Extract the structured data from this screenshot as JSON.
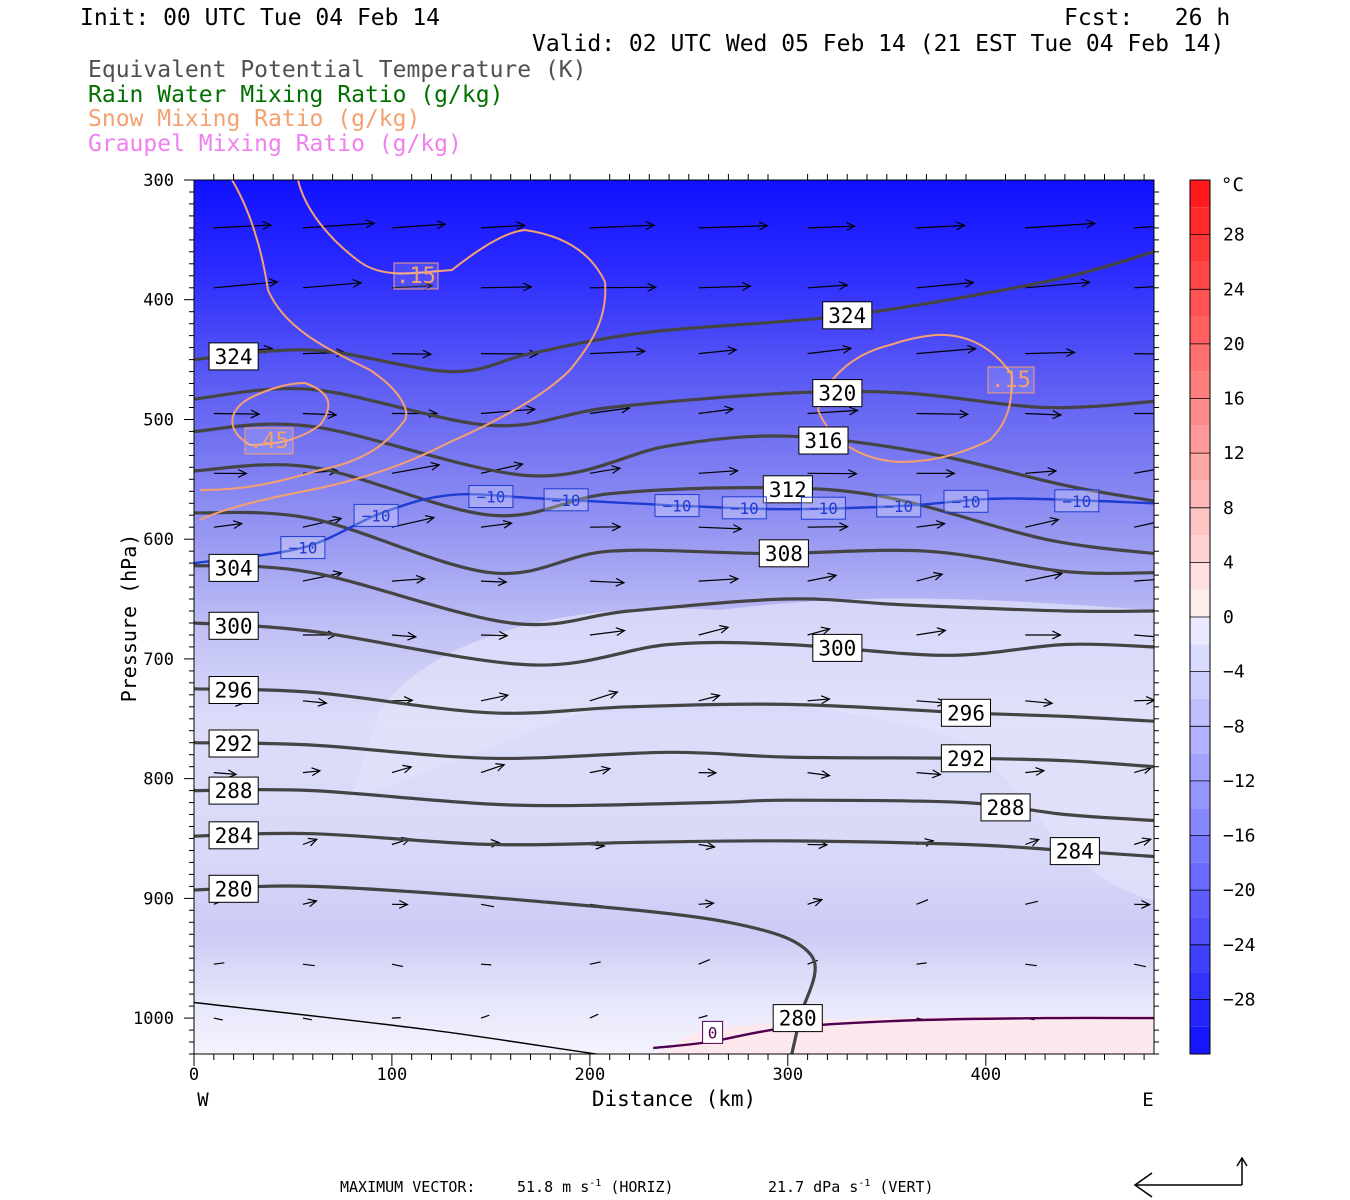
{
  "header": {
    "init": "Init: 00 UTC Tue 04 Feb 14",
    "fcst": "Fcst:   26 h",
    "valid": "Valid: 02 UTC Wed 05 Feb 14 (21 EST Tue 04 Feb 14)"
  },
  "legend": {
    "items": [
      {
        "label": "Equivalent Potential Temperature (K)",
        "color": "#505050"
      },
      {
        "label": "Rain Water Mixing Ratio (g/kg)",
        "color": "#007000"
      },
      {
        "label": "Snow Mixing Ratio (g/kg)",
        "color": "#f4a070"
      },
      {
        "label": "Graupel Mixing Ratio (g/kg)",
        "color": "#f080f0"
      }
    ]
  },
  "footer": {
    "label": "MAXIMUM VECTOR:",
    "horiz_value": "51.8 m s",
    "horiz_sup": "-1",
    "horiz_unit": " (HORIZ)",
    "vert_value": "21.7 dPa s",
    "vert_sup": "-1",
    "vert_unit": " (VERT)"
  },
  "colorbar": {
    "unit": "°C",
    "tick_labels": [
      "28",
      "24",
      "20",
      "16",
      "12",
      "8",
      "4",
      "0",
      "−4",
      "−8",
      "−12",
      "−16",
      "−20",
      "−24",
      "−28"
    ],
    "tick_values": [
      28,
      24,
      20,
      16,
      12,
      8,
      4,
      0,
      -4,
      -8,
      -12,
      -16,
      -20,
      -24,
      -28
    ],
    "range": [
      -32,
      32
    ]
  },
  "chart_data": {
    "type": "cross-section",
    "xlabel": "Distance (km)",
    "ylabel": "Pressure (hPa)",
    "xlim": [
      0,
      485
    ],
    "ylim": [
      1030,
      300
    ],
    "x_ticks": [
      "0",
      "100",
      "200",
      "300",
      "400"
    ],
    "x_tick_values": [
      0,
      100,
      200,
      300,
      400
    ],
    "y_ticks": [
      "300",
      "400",
      "500",
      "600",
      "700",
      "800",
      "900",
      "1000"
    ],
    "y_tick_values": [
      300,
      400,
      500,
      600,
      700,
      800,
      900,
      1000
    ],
    "west_label": "W",
    "east_label": "E",
    "theta_e_contours": [
      {
        "label": "324",
        "points": [
          [
            0,
            450
          ],
          [
            60,
            442
          ],
          [
            130,
            460
          ],
          [
            170,
            445
          ],
          [
            230,
            427
          ],
          [
            330,
            413
          ],
          [
            430,
            385
          ],
          [
            485,
            360
          ]
        ]
      },
      {
        "label": "320",
        "points": [
          [
            0,
            483
          ],
          [
            60,
            475
          ],
          [
            150,
            505
          ],
          [
            210,
            490
          ],
          [
            300,
            478
          ],
          [
            360,
            478
          ],
          [
            430,
            490
          ],
          [
            485,
            485
          ]
        ]
      },
      {
        "label": "316",
        "points": [
          [
            0,
            510
          ],
          [
            60,
            506
          ],
          [
            170,
            547
          ],
          [
            240,
            522
          ],
          [
            300,
            514
          ],
          [
            370,
            528
          ],
          [
            440,
            555
          ],
          [
            485,
            568
          ]
        ]
      },
      {
        "label": "312",
        "points": [
          [
            0,
            543
          ],
          [
            60,
            540
          ],
          [
            150,
            580
          ],
          [
            210,
            562
          ],
          [
            290,
            557
          ],
          [
            350,
            565
          ],
          [
            430,
            600
          ],
          [
            485,
            612
          ]
        ]
      },
      {
        "label": "308",
        "points": [
          [
            0,
            578
          ],
          [
            60,
            583
          ],
          [
            150,
            628
          ],
          [
            210,
            610
          ],
          [
            290,
            612
          ],
          [
            370,
            610
          ],
          [
            440,
            627
          ],
          [
            485,
            628
          ]
        ]
      },
      {
        "label": "304",
        "points": [
          [
            0,
            622
          ],
          [
            60,
            628
          ],
          [
            160,
            670
          ],
          [
            220,
            660
          ],
          [
            300,
            650
          ],
          [
            360,
            655
          ],
          [
            440,
            660
          ],
          [
            485,
            660
          ]
        ]
      },
      {
        "label": "300",
        "points": [
          [
            0,
            670
          ],
          [
            60,
            677
          ],
          [
            170,
            705
          ],
          [
            240,
            688
          ],
          [
            300,
            688
          ],
          [
            380,
            697
          ],
          [
            440,
            688
          ],
          [
            485,
            690
          ]
        ]
      },
      {
        "label": "296",
        "points": [
          [
            0,
            725
          ],
          [
            60,
            728
          ],
          [
            150,
            745
          ],
          [
            220,
            740
          ],
          [
            300,
            738
          ],
          [
            390,
            745
          ],
          [
            440,
            748
          ],
          [
            485,
            752
          ]
        ]
      },
      {
        "label": "292",
        "points": [
          [
            0,
            770
          ],
          [
            60,
            772
          ],
          [
            150,
            783
          ],
          [
            240,
            778
          ],
          [
            300,
            782
          ],
          [
            390,
            783
          ],
          [
            440,
            785
          ],
          [
            485,
            790
          ]
        ]
      },
      {
        "label": "288",
        "points": [
          [
            0,
            810
          ],
          [
            60,
            810
          ],
          [
            160,
            822
          ],
          [
            260,
            820
          ],
          [
            300,
            818
          ],
          [
            390,
            820
          ],
          [
            440,
            830
          ],
          [
            485,
            835
          ]
        ]
      },
      {
        "label": "284",
        "points": [
          [
            0,
            848
          ],
          [
            60,
            846
          ],
          [
            150,
            855
          ],
          [
            230,
            853
          ],
          [
            300,
            852
          ],
          [
            390,
            855
          ],
          [
            440,
            860
          ],
          [
            485,
            865
          ]
        ]
      },
      {
        "label": "280",
        "points": [
          [
            0,
            893
          ],
          [
            60,
            890
          ],
          [
            170,
            902
          ],
          [
            270,
            920
          ],
          [
            312,
            948
          ],
          [
            306,
            1000
          ],
          [
            302,
            1030
          ]
        ]
      }
    ],
    "temperature_isotherms": [
      {
        "label": "−10",
        "value": -10,
        "points": [
          [
            0,
            620
          ],
          [
            55,
            607
          ],
          [
            95,
            578
          ],
          [
            130,
            563
          ],
          [
            175,
            566
          ],
          [
            245,
            572
          ],
          [
            300,
            575
          ],
          [
            360,
            572
          ],
          [
            410,
            566
          ],
          [
            485,
            570
          ]
        ]
      },
      {
        "label": "0",
        "value": 0,
        "points": [
          [
            232,
            1025
          ],
          [
            260,
            1020
          ],
          [
            300,
            1008
          ],
          [
            360,
            1002
          ],
          [
            430,
            1000
          ],
          [
            485,
            1000
          ]
        ]
      }
    ],
    "snow_contours": [
      {
        "label": ".15",
        "value": 0.15
      },
      {
        "label": ".45",
        "value": 0.45
      }
    ],
    "wind_vectors": "horizontal wind and vertical motion vectors at grid points"
  }
}
